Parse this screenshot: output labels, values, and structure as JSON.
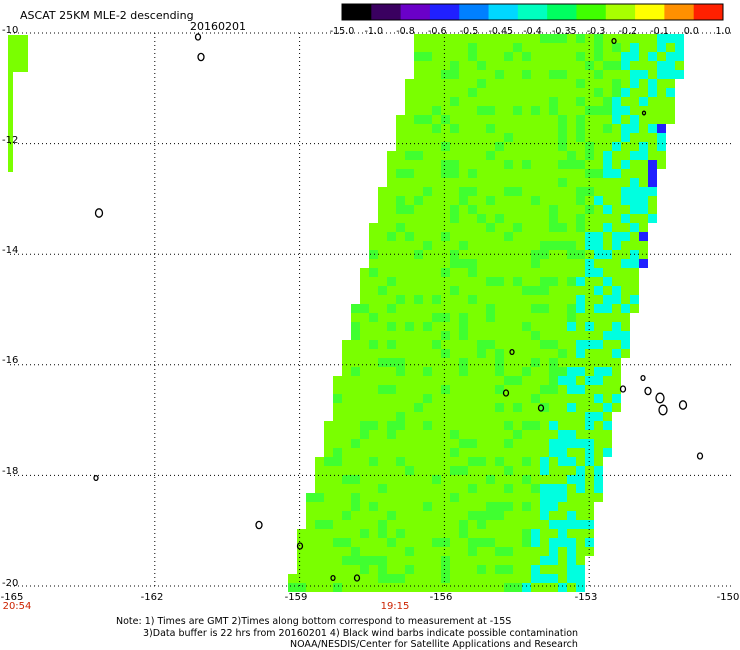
{
  "title": "ASCAT 25KM MLE-2 descending",
  "date": "20160201",
  "colorbar": {
    "ticks": [
      "-15.0",
      "-1.0",
      "-0.8",
      "-0.6",
      "-0.5",
      "-0.45",
      "-0.4",
      "-0.35",
      "-0.3",
      "-0.2",
      "-0.1",
      "0.0",
      "1.0"
    ],
    "colors": [
      "#000000",
      "#3a0060",
      "#6a00c8",
      "#2020ff",
      "#0080ff",
      "#00d8ff",
      "#00ffc0",
      "#00ff60",
      "#40ff00",
      "#a8ff00",
      "#ffff00",
      "#ff9000",
      "#ff2000"
    ]
  },
  "latitude_labels": [
    "-10",
    "-12",
    "-14",
    "-16",
    "-18",
    "-20"
  ],
  "longitude_labels": [
    "-165",
    "-162",
    "-159",
    "-156",
    "-153",
    "-150"
  ],
  "time_labels": [
    "20:54",
    "19:15"
  ],
  "notes": [
    "Note: 1) Times are GMT 2)Times along bottom correspond to measurement at -15S",
    "3)Data buffer is 22 hrs from 20160201 4) Black wind barbs indicate possible contamination",
    "NOAA/NESDIS/Center for Satellite Applications and Research"
  ],
  "map": {
    "lon_range": [
      -165,
      -150
    ],
    "lat_range": [
      -20,
      -10
    ],
    "projection": "equirectangular",
    "gridlines": "dotted",
    "land_outline_color": "#000000",
    "swath_colors": {
      "typical": "#7aff00",
      "green": "#40ff30",
      "cyan": "#00ffe0",
      "blue": "#2020ff"
    }
  }
}
